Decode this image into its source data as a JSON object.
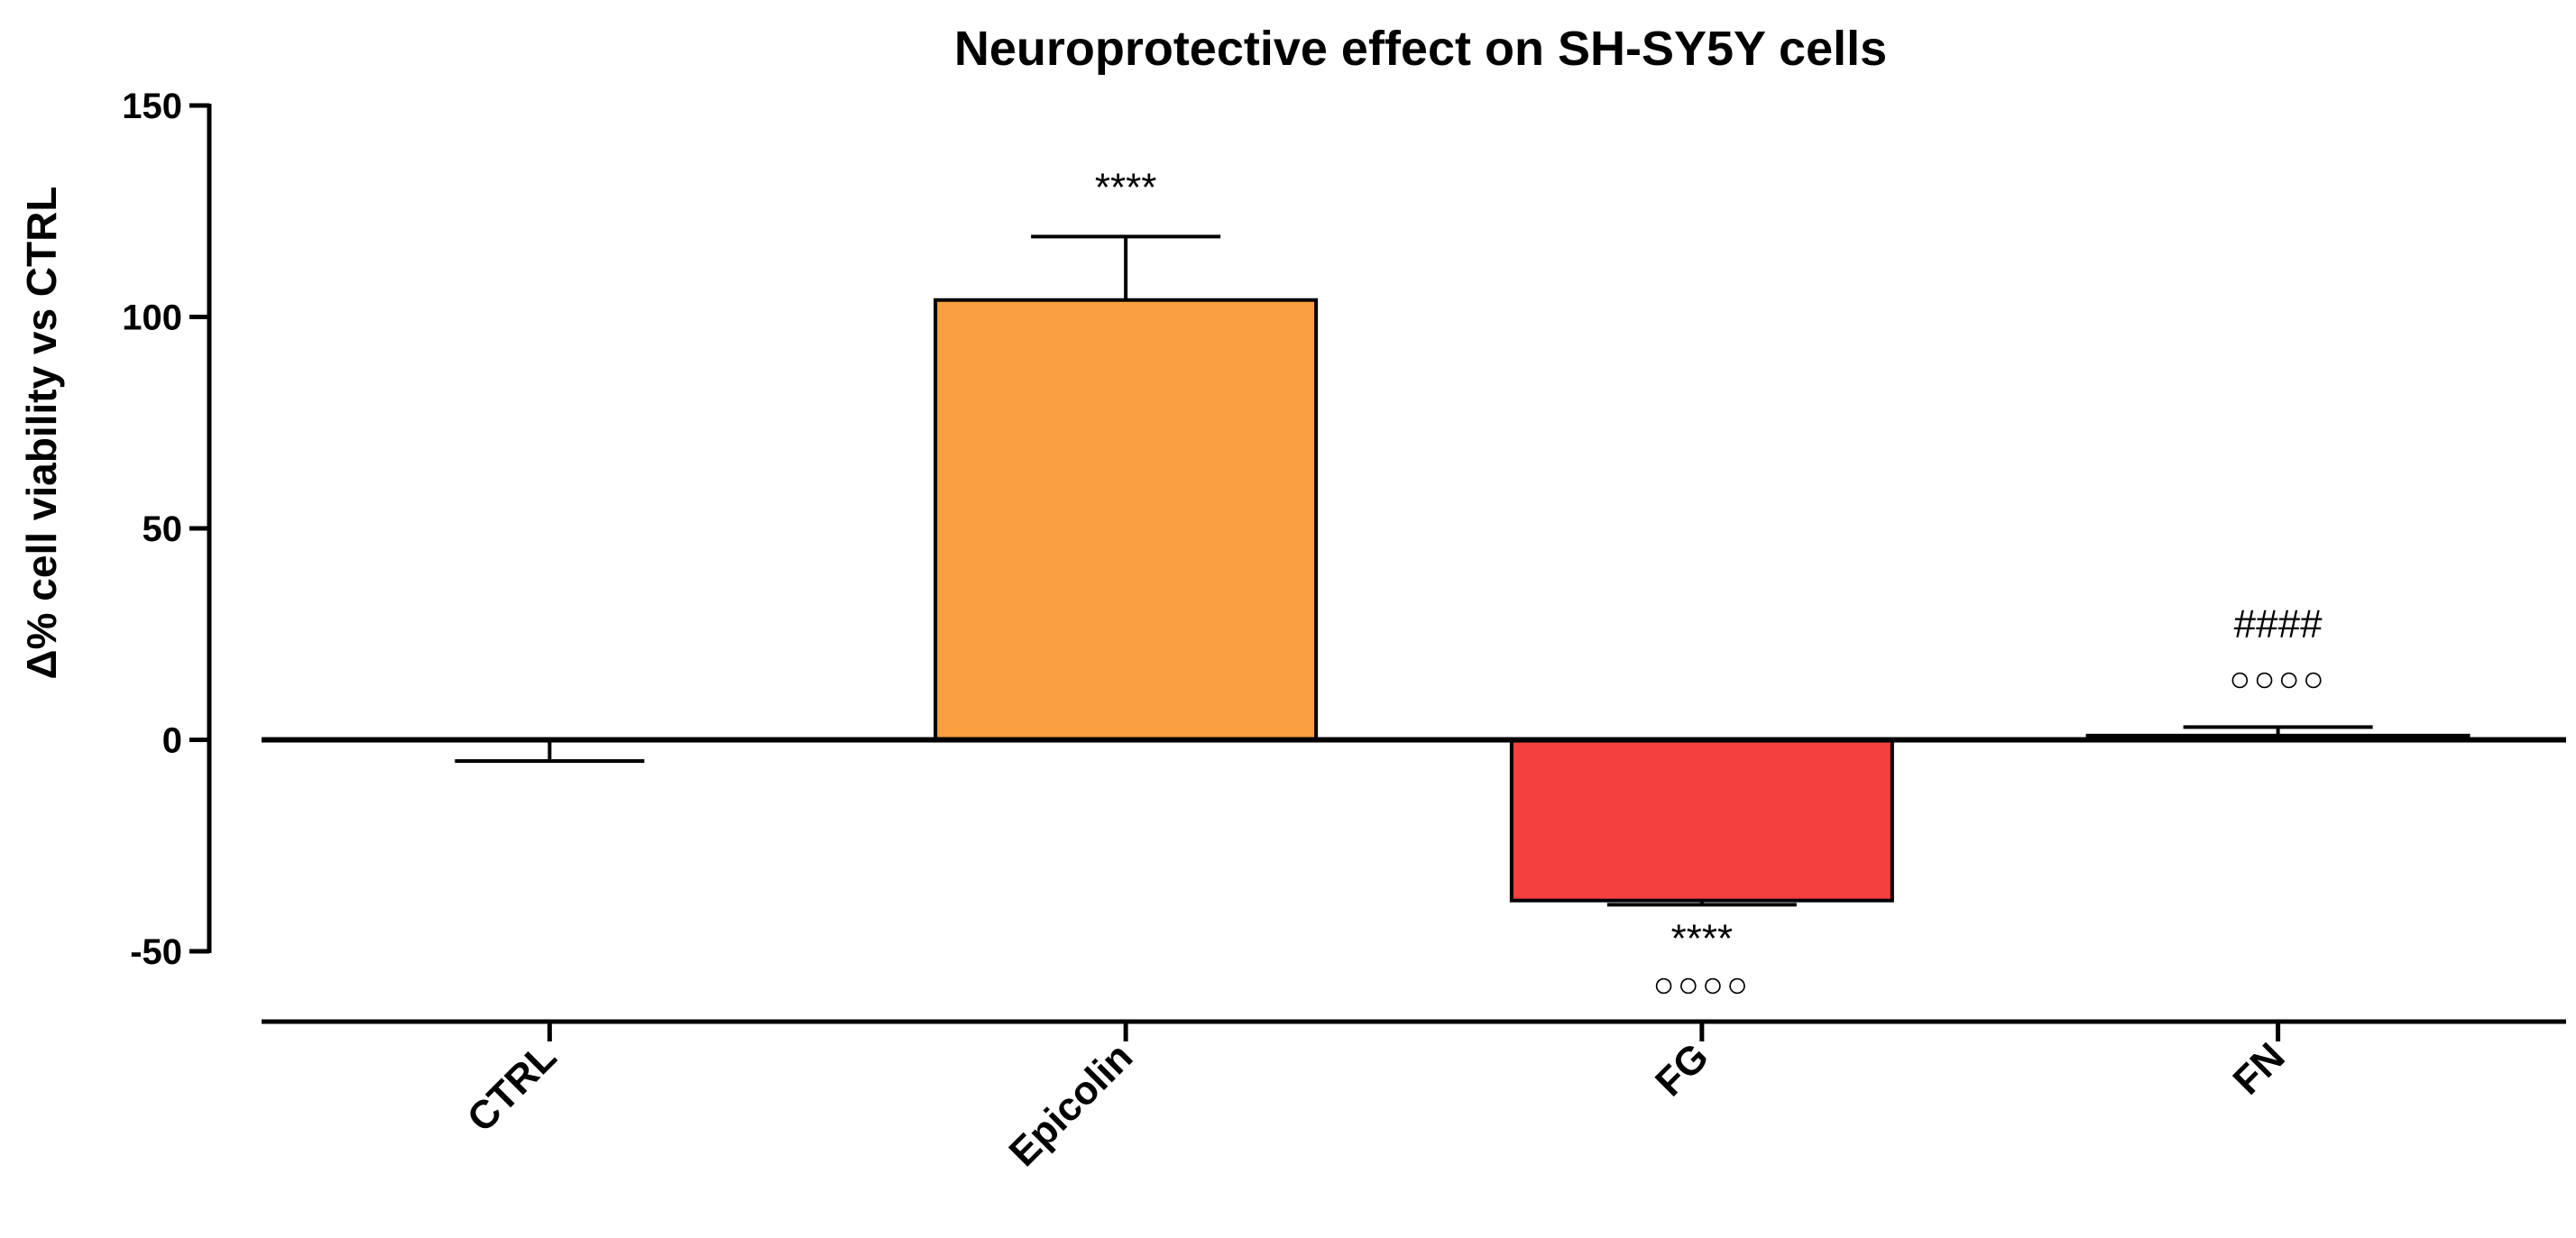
{
  "chart_data": {
    "type": "bar",
    "title": "Neuroprotective effect on SH-SY5Y cells",
    "ylabel": "Δ% cell viability vs CTRL",
    "xlabel": "",
    "ylim": [
      -50,
      150
    ],
    "yticks": [
      -50,
      0,
      50,
      100,
      150
    ],
    "ytick_labels": [
      "-50",
      "0",
      "50",
      "100",
      "150"
    ],
    "categories": [
      "CTRL",
      "Epicolin",
      "FG",
      "FN"
    ],
    "values": [
      0,
      104,
      -38,
      1
    ],
    "errors": [
      5,
      15,
      1,
      2
    ],
    "colors": [
      "#ffffff",
      "#FBA040",
      "#F54040",
      "#F54040"
    ],
    "annotations": [
      {
        "category": "Epicolin",
        "lines": [
          "****"
        ]
      },
      {
        "category": "FG",
        "lines": [
          "****",
          "○○○○"
        ]
      },
      {
        "category": "FN",
        "lines": [
          "####",
          "○○○○"
        ]
      }
    ]
  }
}
